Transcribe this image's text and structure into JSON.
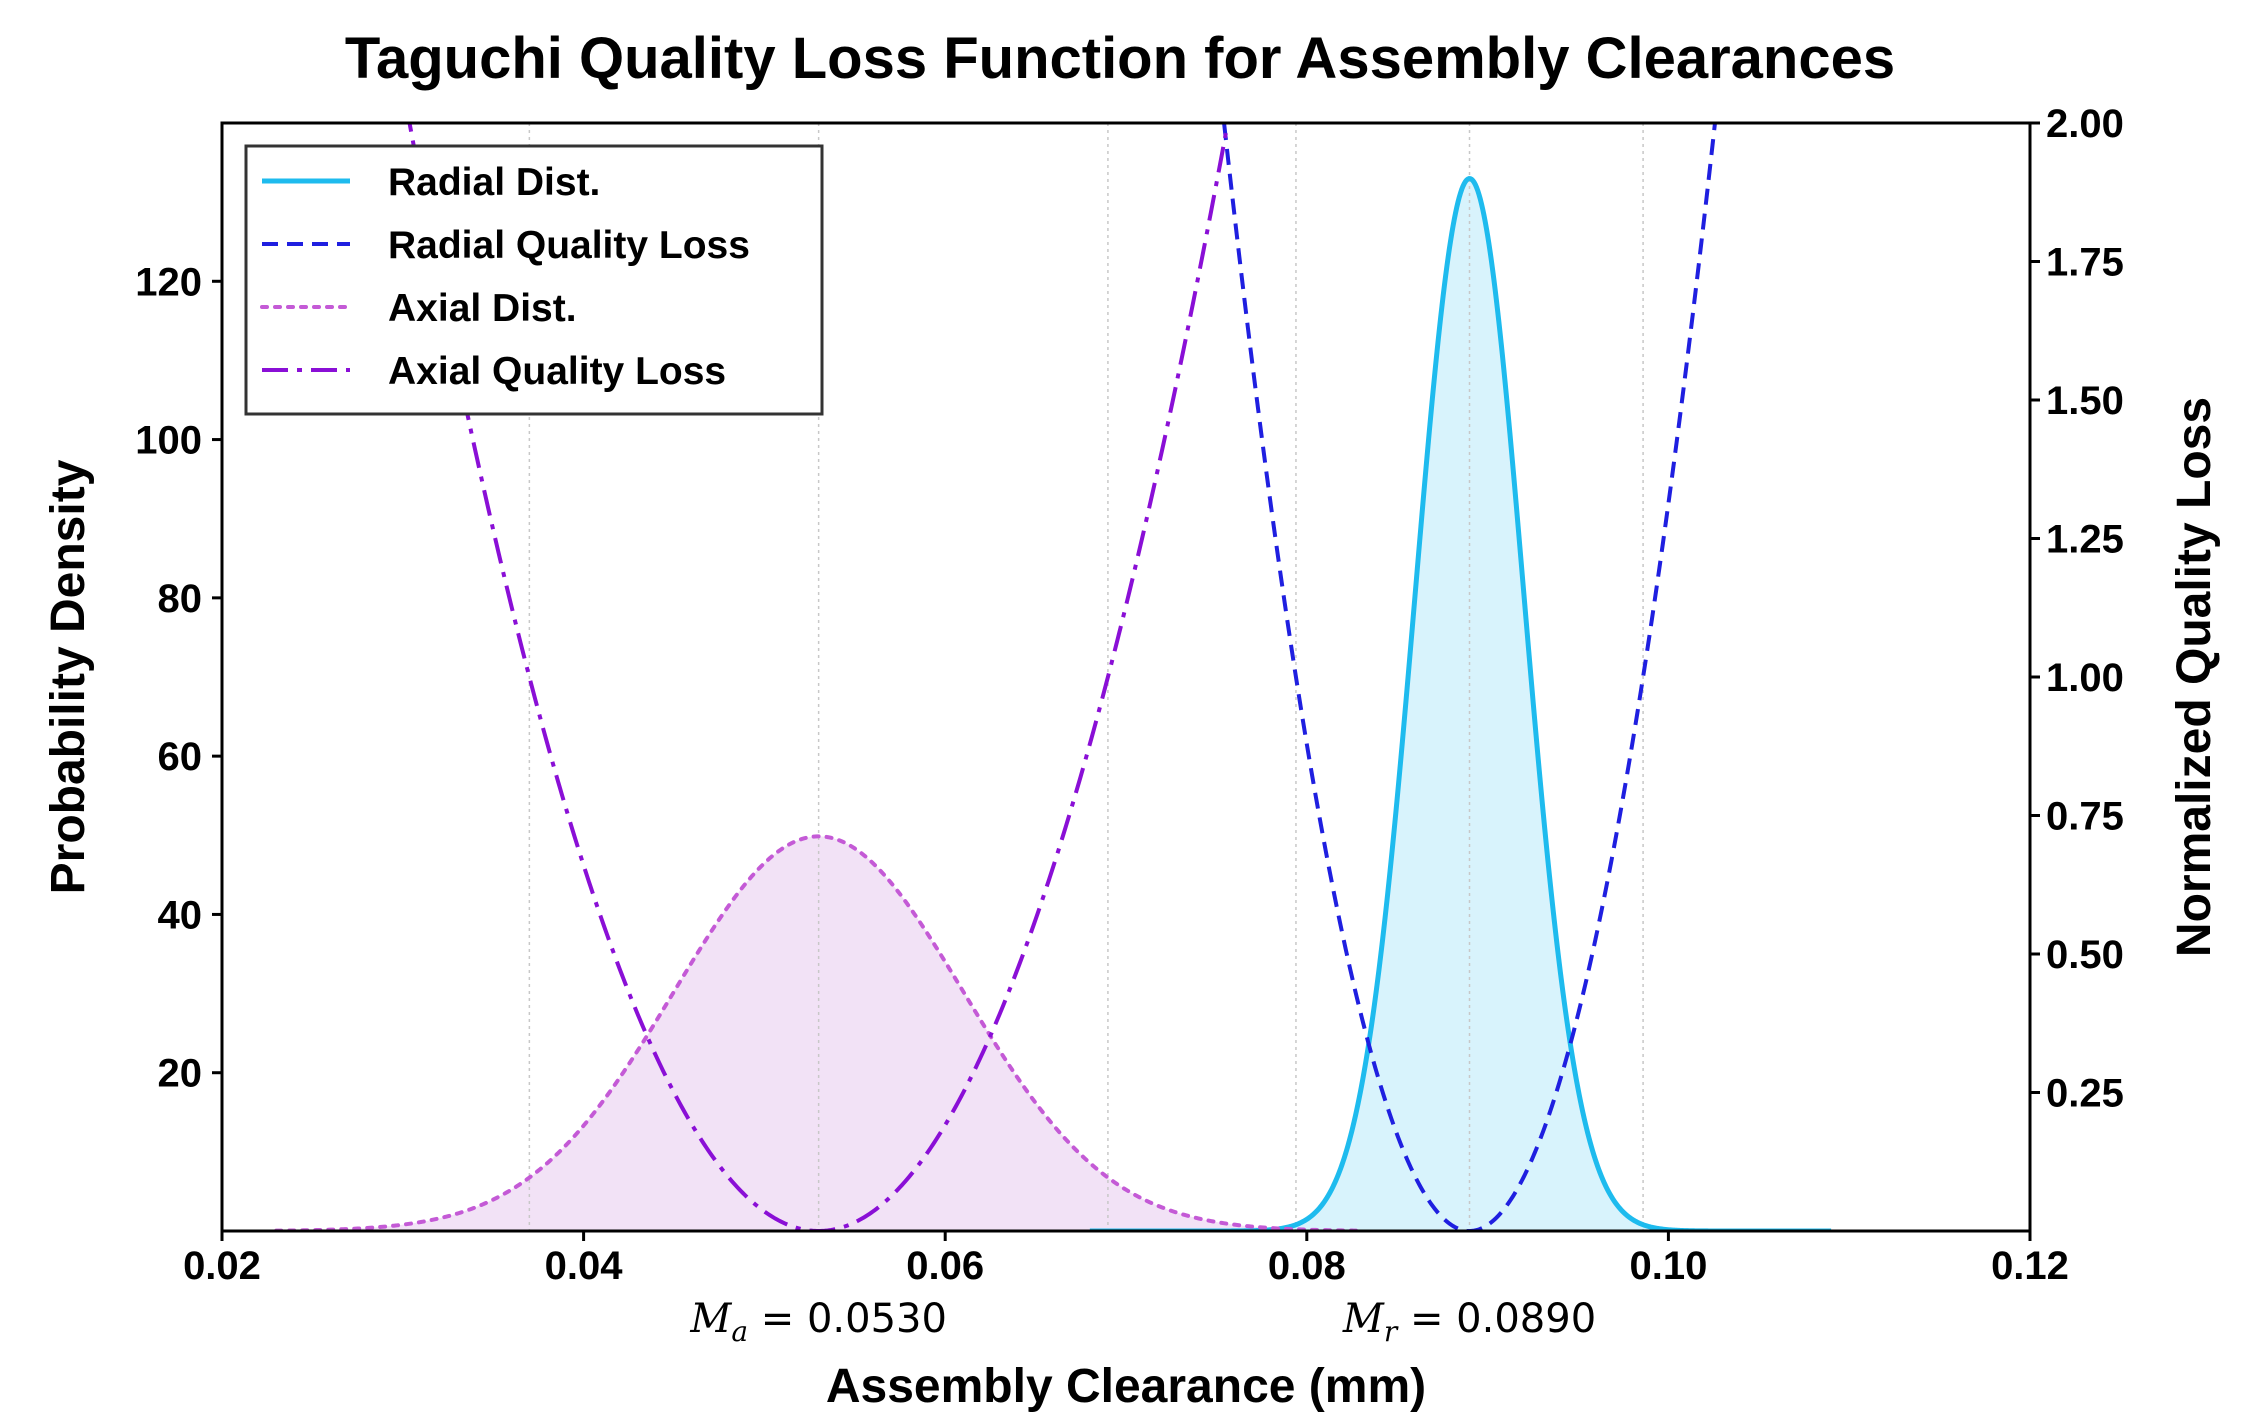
{
  "chart_data": {
    "type": "line",
    "title": "Taguchi Quality Loss Function for Assembly Clearances",
    "xlabel": "Assembly Clearance (mm)",
    "ylabel_left": "Probability Density",
    "ylabel_right": "Normalized Quality Loss",
    "xlim": [
      0.02,
      0.12
    ],
    "ylim_left": [
      0,
      140
    ],
    "ylim_right": [
      0,
      2.0
    ],
    "x_ticks": [
      0.02,
      0.04,
      0.06,
      0.08,
      0.1,
      0.12
    ],
    "x_tick_labels": [
      "0.02",
      "0.04",
      "0.06",
      "0.08",
      "0.10",
      "0.12"
    ],
    "y_left_ticks": [
      20,
      40,
      60,
      80,
      100,
      120
    ],
    "y_left_tick_labels": [
      "20",
      "40",
      "60",
      "80",
      "100",
      "120"
    ],
    "y_right_ticks": [
      0.25,
      0.5,
      0.75,
      1.0,
      1.25,
      1.5,
      1.75,
      2.0
    ],
    "y_right_tick_labels": [
      "0.25",
      "0.50",
      "0.75",
      "1.00",
      "1.25",
      "1.50",
      "1.75",
      "2.00"
    ],
    "vertical_gridlines_x": [
      0.037,
      0.053,
      0.069,
      0.0794,
      0.089,
      0.0986
    ],
    "legend_position": "top-left",
    "annotations": [
      {
        "symbol": "M",
        "subscript": "a",
        "value_text": " = 0.0530",
        "x": 0.053
      },
      {
        "symbol": "M",
        "subscript": "r",
        "value_text": " = 0.0890",
        "x": 0.089
      }
    ],
    "series": [
      {
        "name": "Radial Dist.",
        "kind": "normal_pdf",
        "axis": "left",
        "mean": 0.089,
        "std": 0.003,
        "x_range": [
          0.068,
          0.109
        ],
        "color": "#1ebbee",
        "fill": "#d8f3fc",
        "style": "solid"
      },
      {
        "name": "Radial Quality Loss",
        "kind": "quadratic_loss",
        "axis": "right",
        "target": 0.089,
        "tolerance": 0.0096,
        "x_range": [
          0.068,
          0.109
        ],
        "color": "#1f1fe0",
        "style": "dashed"
      },
      {
        "name": "Axial Dist.",
        "kind": "normal_pdf",
        "axis": "left",
        "mean": 0.053,
        "std": 0.008,
        "x_range": [
          0.023,
          0.083
        ],
        "color": "#c45ad6",
        "fill": "#f2e2f6",
        "style": "dotted"
      },
      {
        "name": "Axial Quality Loss",
        "kind": "quadratic_loss",
        "axis": "right",
        "target": 0.053,
        "tolerance": 0.016,
        "x_range": [
          0.023,
          0.083
        ],
        "color": "#8a0fd6",
        "style": "dashdot"
      }
    ]
  }
}
